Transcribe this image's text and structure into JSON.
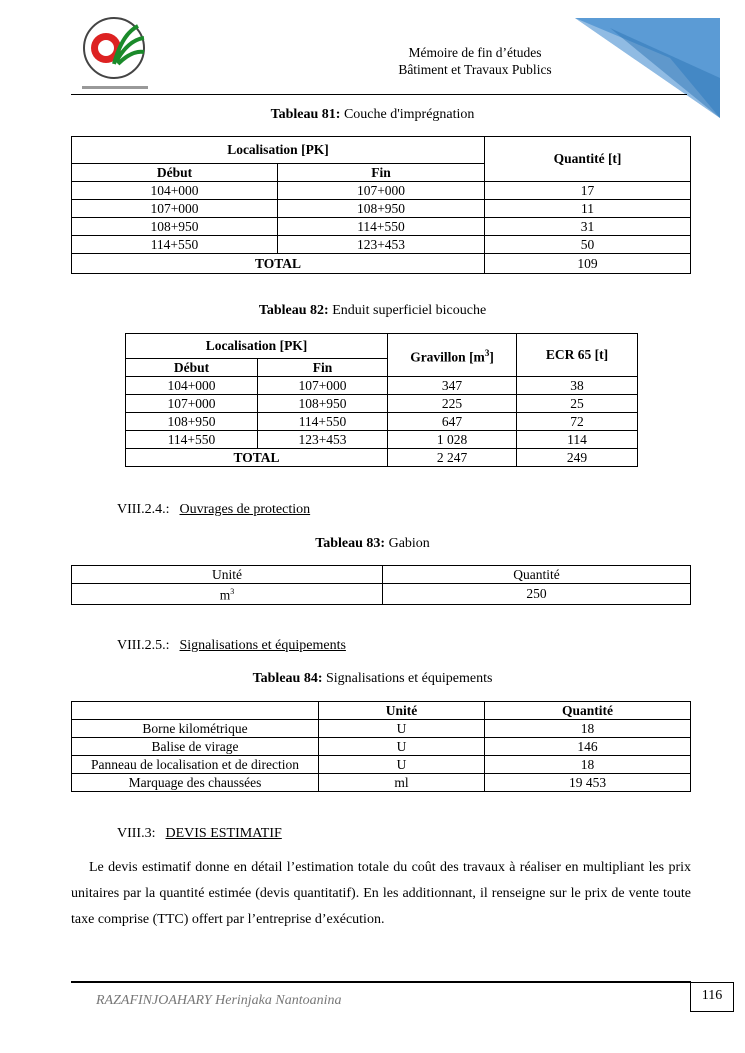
{
  "header": {
    "line1": "Mémoire de fin d’études",
    "line2": "Bâtiment et Travaux Publics",
    "logo_text": "Ecole Supérieure Polytechnique d'Antananarivo"
  },
  "t81": {
    "caption_bold": "Tableau 81:",
    "caption": "Couche d'imprégnation",
    "h_loc": "Localisation [PK]",
    "h_qty": "Quantité [t]",
    "h_debut": "Début",
    "h_fin": "Fin",
    "rows": [
      [
        "104+000",
        "107+000",
        "17"
      ],
      [
        "107+000",
        "108+950",
        "11"
      ],
      [
        "108+950",
        "114+550",
        "31"
      ],
      [
        "114+550",
        "123+453",
        "50"
      ]
    ],
    "total_label": "TOTAL",
    "total": "109"
  },
  "t82": {
    "caption_bold": "Tableau 82:",
    "caption": "Enduit superficiel bicouche",
    "h_loc": "Localisation [PK]",
    "h_grav": "Gravillon [m",
    "h_grav_sup": "3",
    "h_grav_end": "]",
    "h_ecr": "ECR 65 [t]",
    "h_debut": "Début",
    "h_fin": "Fin",
    "rows": [
      [
        "104+000",
        "107+000",
        "347",
        "38"
      ],
      [
        "107+000",
        "108+950",
        "225",
        "25"
      ],
      [
        "108+950",
        "114+550",
        "647",
        "72"
      ],
      [
        "114+550",
        "123+453",
        "1 028",
        "114"
      ]
    ],
    "total_label": "TOTAL",
    "total_grav": "2 247",
    "total_ecr": "249"
  },
  "s824": {
    "num": "VIII.2.4.:",
    "title": "Ouvrages de protection"
  },
  "t83": {
    "caption_bold": "Tableau 83:",
    "caption": "Gabion",
    "h_unit": "Unité",
    "h_qty": "Quantité",
    "unit": "m",
    "unit_sup": "3",
    "qty": "250"
  },
  "s825": {
    "num": "VIII.2.5.:",
    "title": "Signalisations et équipements"
  },
  "t84": {
    "caption_bold": "Tableau 84:",
    "caption": "Signalisations et équipements",
    "h_unit": "Unité",
    "h_qty": "Quantité",
    "rows": [
      [
        "Borne kilométrique",
        "U",
        "18"
      ],
      [
        "Balise de virage",
        "U",
        "146"
      ],
      [
        "Panneau de localisation et de direction",
        "U",
        "18"
      ],
      [
        "Marquage des chaussées",
        "ml",
        "19 453"
      ]
    ]
  },
  "s83": {
    "num": "VIII.3:",
    "title": "DEVIS ESTIMATIF"
  },
  "paragraph": "Le devis estimatif donne en détail l’estimation totale du coût des travaux à réaliser en multipliant les prix unitaires par la quantité estimée (devis quantitatif). En les additionnant, il renseigne sur le prix de vente toute taxe comprise (TTC) offert par l’entreprise d’exécution.",
  "footer": {
    "author": "RAZAFINJOAHARY Herinjaka Nantoanina",
    "page": "116"
  },
  "colors": {
    "accent": "#5b9bd5"
  }
}
